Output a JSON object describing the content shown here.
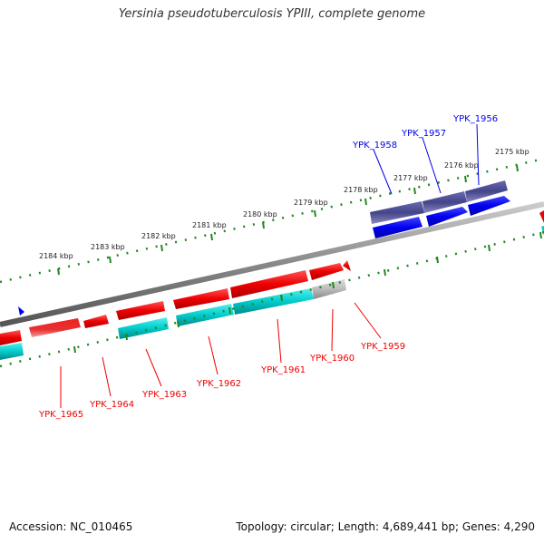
{
  "title": "Yersinia pseudotuberculosis YPIII, complete genome",
  "footer": {
    "accession": "Accession: NC_010465",
    "stats": "Topology: circular; Length: 4,689,441 bp; Genes: 4,290"
  },
  "scale_labels": [
    "2175 kbp",
    "2176 kbp",
    "2177 kbp",
    "2178 kbp",
    "2179 kbp",
    "2180 kbp",
    "2181 kbp",
    "2182 kbp",
    "2183 kbp",
    "2184 kbp"
  ],
  "genes": [
    {
      "name": "YPK_1956",
      "strand": "forward",
      "color": "#0000ee"
    },
    {
      "name": "YPK_1957",
      "strand": "forward",
      "color": "#0000ee"
    },
    {
      "name": "YPK_1958",
      "strand": "forward",
      "color": "#0000ee"
    },
    {
      "name": "YPK_1959",
      "strand": "reverse",
      "color": "#ee0000"
    },
    {
      "name": "YPK_1960",
      "strand": "reverse",
      "color": "#ee0000"
    },
    {
      "name": "YPK_1961",
      "strand": "reverse",
      "color": "#ee0000"
    },
    {
      "name": "YPK_1962",
      "strand": "reverse",
      "color": "#ee0000"
    },
    {
      "name": "YPK_1963",
      "strand": "reverse",
      "color": "#ee0000"
    },
    {
      "name": "YPK_1964",
      "strand": "reverse",
      "color": "#ee0000"
    },
    {
      "name": "YPK_1965",
      "strand": "reverse",
      "color": "#ee0000"
    }
  ],
  "colors": {
    "forward_gene": "#0000ee",
    "forward_cds": "#44448a",
    "reverse_gene": "#ee0000",
    "reverse_cds": "#00cccc",
    "backbone": "#888888",
    "tick": "#228822"
  }
}
